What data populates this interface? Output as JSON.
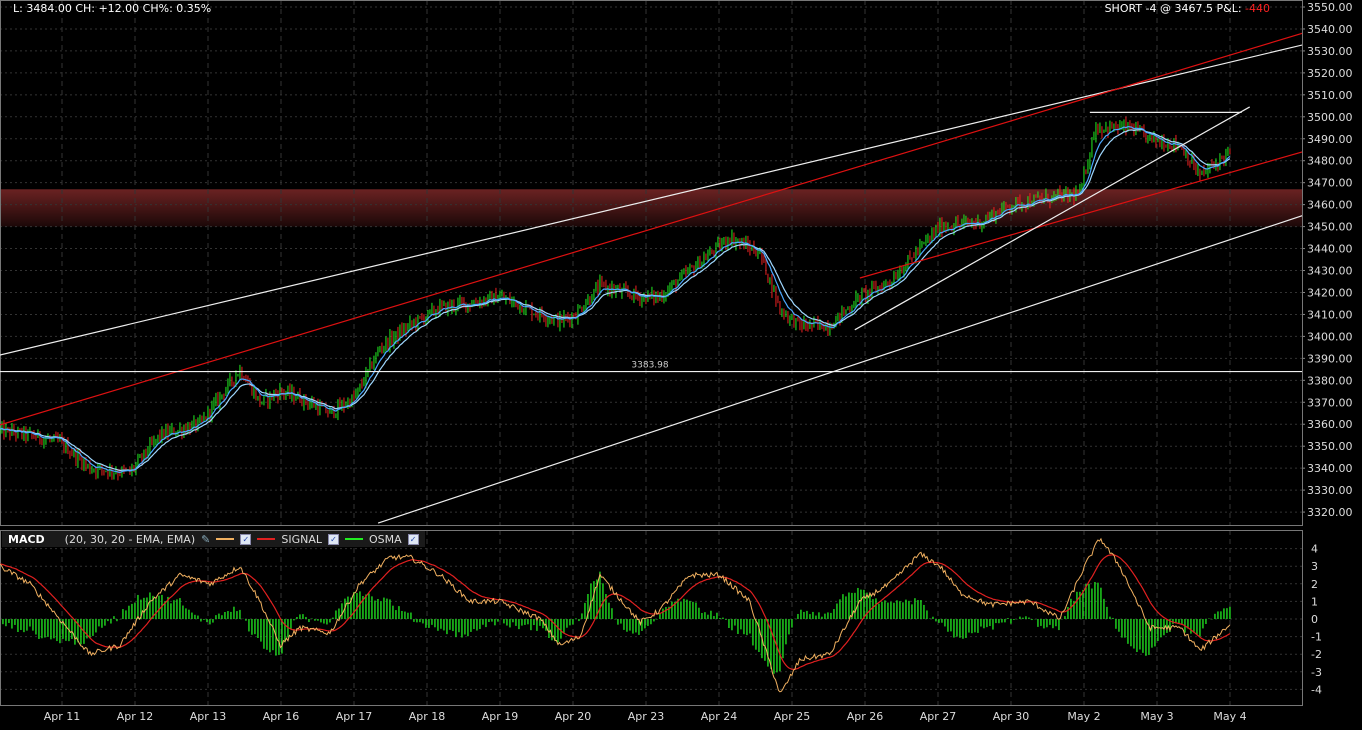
{
  "header": {
    "quote": "L: 3484.00 CH: +12.00 CH%: 0.35%",
    "position": "SHORT -4 @ 3467.5 P&L: ",
    "pnl": "-440"
  },
  "macd_legend": {
    "title": "MACD",
    "params": "(20, 30, 20 - EMA, EMA)",
    "macd_label": "",
    "signal_label": "SIGNAL",
    "osma_label": "OSMA",
    "icons": [
      "wrench-icon",
      "checkbox-icon"
    ]
  },
  "colors": {
    "up": "#22ee22",
    "down": "#ee2222",
    "ema_fast": "#4aa8ff",
    "ema_slow": "#9fd8ff",
    "macd": "#f0b060",
    "signal": "#e02020",
    "osma": "#22ee22",
    "band": "#5a1a1a",
    "red_line": "#dd1111"
  },
  "chart_data": [
    {
      "type": "candlestick",
      "ylim": [
        3315,
        3552
      ],
      "y_ticks": [
        3320,
        3330,
        3340,
        3350,
        3360,
        3370,
        3380,
        3390,
        3400,
        3410,
        3420,
        3430,
        3440,
        3450,
        3460,
        3470,
        3480,
        3490,
        3500,
        3510,
        3520,
        3530,
        3540,
        3550
      ],
      "x_ticks": [
        "Apr 11",
        "Apr 12",
        "Apr 13",
        "Apr 16",
        "Apr 17",
        "Apr 18",
        "Apr 19",
        "Apr 20",
        "Apr 23",
        "Apr 24",
        "Apr 25",
        "Apr 26",
        "Apr 27",
        "Apr 30",
        "May 2",
        "May 3",
        "May 4"
      ],
      "close_path": [
        [
          -0.85,
          3357
        ],
        [
          -0.44,
          3355
        ],
        [
          -0.03,
          3352
        ],
        [
          0.38,
          3340
        ],
        [
          0.93,
          3338
        ],
        [
          1.34,
          3355
        ],
        [
          1.89,
          3360
        ],
        [
          2.44,
          3385
        ],
        [
          2.71,
          3370
        ],
        [
          2.99,
          3375
        ],
        [
          3.26,
          3372
        ],
        [
          3.67,
          3365
        ],
        [
          4.01,
          3372
        ],
        [
          4.36,
          3395
        ],
        [
          4.77,
          3405
        ],
        [
          5.18,
          3413
        ],
        [
          5.59,
          3415
        ],
        [
          6.0,
          3418
        ],
        [
          6.41,
          3412
        ],
        [
          6.82,
          3407
        ],
        [
          7.03,
          3410
        ],
        [
          7.37,
          3423
        ],
        [
          7.92,
          3418
        ],
        [
          8.19,
          3418
        ],
        [
          8.6,
          3430
        ],
        [
          9.15,
          3445
        ],
        [
          9.56,
          3438
        ],
        [
          9.84,
          3412
        ],
        [
          10.11,
          3405
        ],
        [
          10.52,
          3405
        ],
        [
          10.93,
          3418
        ],
        [
          11.34,
          3425
        ],
        [
          11.75,
          3440
        ],
        [
          12.03,
          3450
        ],
        [
          12.58,
          3452
        ],
        [
          12.99,
          3460
        ],
        [
          13.53,
          3463
        ],
        [
          13.95,
          3465
        ],
        [
          14.15,
          3495
        ],
        [
          14.63,
          3495
        ],
        [
          14.9,
          3490
        ],
        [
          15.32,
          3487
        ],
        [
          15.59,
          3473
        ],
        [
          16.0,
          3484
        ]
      ],
      "price_line": {
        "value": 3383.98,
        "label": "3383.98"
      },
      "zone": [
        3450,
        3467
      ],
      "trendlines": [
        {
          "color": "white",
          "from": [
            -0.85,
            3391.5
          ],
          "to": [
            16.99,
            3532.7
          ]
        },
        {
          "color": "red",
          "from": [
            -0.85,
            3359.7
          ],
          "to": [
            16.99,
            3538
          ]
        },
        {
          "color": "red",
          "from": [
            10.93,
            3426.6
          ],
          "to": [
            16.99,
            3484
          ]
        },
        {
          "color": "white",
          "from": [
            4.33,
            3315
          ],
          "to": [
            16.99,
            3455
          ]
        },
        {
          "color": "white",
          "from": [
            10.86,
            3403
          ],
          "to": [
            16.27,
            3504.5
          ]
        },
        {
          "color": "white",
          "from": [
            14.08,
            3502
          ],
          "to": [
            16.16,
            3502
          ]
        }
      ]
    },
    {
      "type": "line",
      "name": "MACD",
      "ylim": [
        -4.6,
        5
      ],
      "y_ticks": [
        4,
        3,
        2,
        1,
        0,
        -1,
        -2,
        -3,
        -4
      ],
      "macd_path": [
        [
          -0.85,
          3
        ],
        [
          -0.44,
          2
        ],
        [
          -0.03,
          0
        ],
        [
          0.38,
          -2
        ],
        [
          0.79,
          -1.5
        ],
        [
          1.21,
          1
        ],
        [
          1.62,
          2.5
        ],
        [
          2.03,
          2
        ],
        [
          2.44,
          3
        ],
        [
          2.71,
          1
        ],
        [
          2.99,
          -1.5
        ],
        [
          3.26,
          -0.5
        ],
        [
          3.67,
          -0.8
        ],
        [
          4.08,
          2
        ],
        [
          4.49,
          3.5
        ],
        [
          4.77,
          3.5
        ],
        [
          5.18,
          2.5
        ],
        [
          5.59,
          1
        ],
        [
          6.0,
          1
        ],
        [
          6.55,
          0
        ],
        [
          6.82,
          -1.5
        ],
        [
          7.1,
          -1
        ],
        [
          7.37,
          2.5
        ],
        [
          7.92,
          -0.2
        ],
        [
          8.19,
          0.5
        ],
        [
          8.6,
          2.5
        ],
        [
          9.01,
          2.5
        ],
        [
          9.42,
          1
        ],
        [
          9.84,
          -4.3
        ],
        [
          10.11,
          -2.3
        ],
        [
          10.52,
          -2
        ],
        [
          10.93,
          1
        ],
        [
          11.34,
          2
        ],
        [
          11.75,
          3.7
        ],
        [
          12.03,
          3
        ],
        [
          12.3,
          1.5
        ],
        [
          12.71,
          0.8
        ],
        [
          13.26,
          1
        ],
        [
          13.67,
          0
        ],
        [
          14.01,
          3
        ],
        [
          14.22,
          4.6
        ],
        [
          14.49,
          3
        ],
        [
          14.9,
          -0.5
        ],
        [
          15.32,
          -0.5
        ],
        [
          15.59,
          -1.8
        ],
        [
          16.0,
          -0.3
        ]
      ]
    }
  ]
}
